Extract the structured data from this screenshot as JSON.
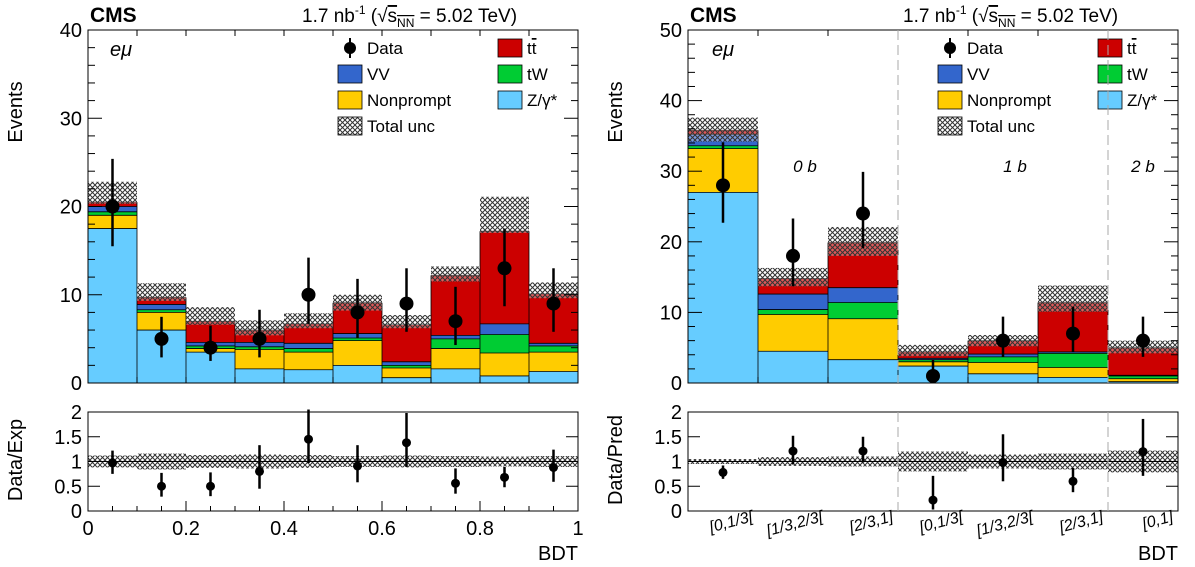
{
  "colors": {
    "ttbar": "#cc0000",
    "tW": "#00cc33",
    "VV": "#3366cc",
    "Nonprompt": "#ffcc00",
    "Zgamma": "#66ccff",
    "data": "#000000",
    "unc": "#555555"
  },
  "header": {
    "experiment": "CMS",
    "lumi_text": "1.7 nb",
    "lumi_exp": "-1",
    "energy_prefix": "(",
    "energy_s": "s",
    "energy_sub": "NN",
    "energy_suffix": " = 5.02 TeV)"
  },
  "legend": [
    {
      "key": "data",
      "label": "Data",
      "kind": "marker"
    },
    {
      "key": "ttbar",
      "label": "tt",
      "kind": "box",
      "overline": true
    },
    {
      "key": "VV",
      "label": "VV",
      "kind": "box"
    },
    {
      "key": "tW",
      "label": "tW",
      "kind": "box"
    },
    {
      "key": "Nonprompt",
      "label": "Nonprompt",
      "kind": "box"
    },
    {
      "key": "Zgamma",
      "label": "Z/γ*",
      "kind": "box"
    },
    {
      "key": "unc",
      "label": "Total unc",
      "kind": "hatch"
    }
  ],
  "chart_data": [
    {
      "type": "bar",
      "stacked": true,
      "channel_label": "eμ",
      "ylabel": "Events",
      "ylim": [
        0,
        40
      ],
      "yticks": [
        "0",
        "10",
        "20",
        "30",
        "40"
      ],
      "xlabel": "BDT",
      "xlim": [
        0,
        1
      ],
      "xticks": [
        "0",
        "0.2",
        "0.4",
        "0.6",
        "0.8",
        "1"
      ],
      "bin_edges": [
        0,
        0.1,
        0.2,
        0.3,
        0.4,
        0.5,
        0.6,
        0.7,
        0.8,
        0.9,
        1.0
      ],
      "stack": [
        {
          "name": "Z/γ*",
          "values": [
            17.5,
            6.0,
            3.5,
            1.6,
            1.5,
            2.0,
            0.6,
            1.6,
            0.8,
            1.3
          ]
        },
        {
          "name": "Nonprompt",
          "values": [
            1.5,
            2.0,
            0.4,
            2.2,
            2.0,
            2.8,
            1.1,
            2.3,
            2.6,
            2.2
          ]
        },
        {
          "name": "tW",
          "values": [
            0.4,
            0.3,
            0.3,
            0.3,
            0.4,
            0.3,
            0.3,
            1.1,
            2.1,
            0.7
          ]
        },
        {
          "name": "VV",
          "values": [
            0.6,
            0.6,
            0.4,
            0.5,
            0.6,
            0.5,
            0.4,
            0.4,
            1.2,
            0.3
          ]
        },
        {
          "name": "tt",
          "values": [
            0.5,
            0.8,
            2.4,
            1.4,
            2.2,
            3.5,
            4.2,
            6.8,
            10.5,
            5.6
          ]
        }
      ],
      "unc_band": [
        [
          20.3,
          22.8
        ],
        [
          9.3,
          11.3
        ],
        [
          6.6,
          8.6
        ],
        [
          5.4,
          7.1
        ],
        [
          6.2,
          7.9
        ],
        [
          8.2,
          10.0
        ],
        [
          6.2,
          7.7
        ],
        [
          11.5,
          13.2
        ],
        [
          17.0,
          21.1
        ],
        [
          9.6,
          11.4
        ]
      ],
      "data_points": [
        {
          "y": 20,
          "err": [
            15.5,
            25.4
          ]
        },
        {
          "y": 5,
          "err": [
            2.9,
            7.5
          ]
        },
        {
          "y": 4,
          "err": [
            2.5,
            6.5
          ]
        },
        {
          "y": 5,
          "err": [
            2.9,
            8.3
          ]
        },
        {
          "y": 10,
          "err": [
            6.7,
            14.2
          ]
        },
        {
          "y": 8,
          "err": [
            5.1,
            11.8
          ]
        },
        {
          "y": 9,
          "err": [
            5.8,
            13.0
          ]
        },
        {
          "y": 7,
          "err": [
            4.3,
            10.9
          ]
        },
        {
          "y": 13,
          "err": [
            8.7,
            17.5
          ]
        },
        {
          "y": 9,
          "err": [
            5.8,
            13.0
          ]
        }
      ],
      "ratio": {
        "ylabel": "Data/Exp",
        "ylim": [
          0,
          2
        ],
        "yticks": [
          "0",
          "0.5",
          "1",
          "1.5",
          "2"
        ],
        "band": [
          [
            0.88,
            1.12
          ],
          [
            0.84,
            1.16
          ],
          [
            0.87,
            1.13
          ],
          [
            0.86,
            1.14
          ],
          [
            0.87,
            1.13
          ],
          [
            0.89,
            1.11
          ],
          [
            0.88,
            1.12
          ],
          [
            0.89,
            1.11
          ],
          [
            0.9,
            1.1
          ],
          [
            0.89,
            1.11
          ]
        ],
        "points": [
          {
            "y": 0.97,
            "err": [
              0.75,
              1.22
            ]
          },
          {
            "y": 0.5,
            "err": [
              0.29,
              0.77
            ]
          },
          {
            "y": 0.5,
            "err": [
              0.3,
              0.78
            ]
          },
          {
            "y": 0.8,
            "err": [
              0.45,
              1.33
            ]
          },
          {
            "y": 1.45,
            "err": [
              0.97,
              2.05
            ]
          },
          {
            "y": 0.91,
            "err": [
              0.58,
              1.33
            ]
          },
          {
            "y": 1.38,
            "err": [
              0.89,
              1.98
            ]
          },
          {
            "y": 0.56,
            "err": [
              0.35,
              0.86
            ]
          },
          {
            "y": 0.68,
            "err": [
              0.48,
              0.89
            ]
          },
          {
            "y": 0.88,
            "err": [
              0.59,
              1.24
            ]
          }
        ]
      }
    },
    {
      "type": "bar",
      "stacked": true,
      "channel_label": "eμ",
      "ylabel": "Events",
      "ylim": [
        0,
        50
      ],
      "yticks": [
        "0",
        "10",
        "20",
        "30",
        "40",
        "50"
      ],
      "xlabel": "BDT",
      "categories": [
        "[0,1/3[",
        "[1/3,2/3[",
        "[2/3,1]",
        "[0,1/3[",
        "[1/3,2/3[",
        "[2/3,1]",
        "[0,1]"
      ],
      "category_groups": [
        {
          "label": "0 b",
          "bins": [
            0,
            1,
            2
          ]
        },
        {
          "label": "1 b",
          "bins": [
            3,
            4,
            5
          ]
        },
        {
          "label": "2 b",
          "bins": [
            6
          ]
        }
      ],
      "stack": [
        {
          "name": "Z/γ*",
          "values": [
            27.0,
            4.5,
            3.3,
            2.4,
            1.3,
            0.8,
            0.2
          ]
        },
        {
          "name": "Nonprompt",
          "values": [
            6.2,
            5.2,
            5.8,
            0.6,
            1.6,
            1.4,
            0.4
          ]
        },
        {
          "name": "tW",
          "values": [
            0.4,
            0.7,
            2.3,
            0.3,
            0.8,
            2.0,
            0.4
          ]
        },
        {
          "name": "VV",
          "values": [
            1.6,
            2.2,
            2.1,
            0.2,
            0.4,
            0.2,
            0.1
          ]
        },
        {
          "name": "tt",
          "values": [
            0.6,
            2.2,
            6.4,
            0.9,
            1.9,
            7.0,
            3.9
          ]
        }
      ],
      "unc_band": [
        [
          34.2,
          37.6
        ],
        [
          13.7,
          16.3
        ],
        [
          18.0,
          22.1
        ],
        [
          3.8,
          5.4
        ],
        [
          5.2,
          6.8
        ],
        [
          10.1,
          13.8
        ],
        [
          4.2,
          6.0
        ]
      ],
      "data_points": [
        {
          "y": 28,
          "err": [
            22.7,
            34.1
          ]
        },
        {
          "y": 18,
          "err": [
            13.7,
            23.3
          ]
        },
        {
          "y": 24,
          "err": [
            19.1,
            29.9
          ]
        },
        {
          "y": 1,
          "err": [
            0.2,
            3.3
          ]
        },
        {
          "y": 6,
          "err": [
            3.7,
            9.4
          ]
        },
        {
          "y": 7,
          "err": [
            4.4,
            10.8
          ]
        },
        {
          "y": 6,
          "err": [
            3.7,
            9.4
          ]
        }
      ],
      "ratio": {
        "ylabel": "Data/Pred",
        "ylim": [
          0,
          2
        ],
        "yticks": [
          "0",
          "0.5",
          "1",
          "1.5",
          "2"
        ],
        "band": [
          [
            0.95,
            1.05
          ],
          [
            0.91,
            1.09
          ],
          [
            0.9,
            1.1
          ],
          [
            0.8,
            1.2
          ],
          [
            0.86,
            1.14
          ],
          [
            0.84,
            1.16
          ],
          [
            0.78,
            1.22
          ]
        ],
        "points": [
          {
            "y": 0.78,
            "err": [
              0.65,
              0.92
            ]
          },
          {
            "y": 1.21,
            "err": [
              0.94,
              1.52
            ]
          },
          {
            "y": 1.21,
            "err": [
              0.98,
              1.5
            ]
          },
          {
            "y": 0.22,
            "err": [
              0.03,
              0.71
            ]
          },
          {
            "y": 0.98,
            "err": [
              0.6,
              1.55
            ]
          },
          {
            "y": 0.6,
            "err": [
              0.38,
              0.87
            ]
          },
          {
            "y": 1.2,
            "err": [
              0.71,
              1.86
            ]
          }
        ]
      }
    }
  ]
}
